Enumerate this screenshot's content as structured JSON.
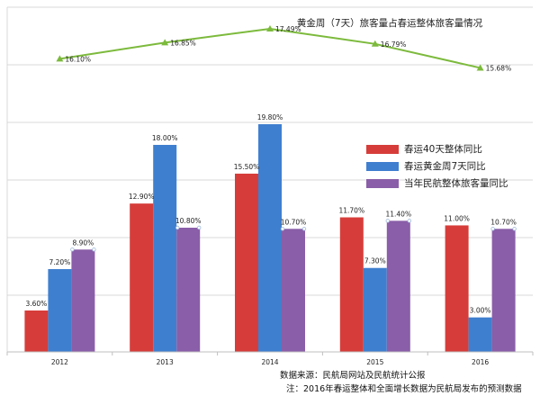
{
  "chart_data": [
    {
      "type": "bar",
      "categories": [
        "2012",
        "2013",
        "2014",
        "2015",
        "2016"
      ],
      "series": [
        {
          "name": "春运40天整体同比",
          "values": [
            3.6,
            12.9,
            15.5,
            11.7,
            11.0
          ],
          "labels": [
            "3.60%",
            "12.90%",
            "15.50%",
            "11.70%",
            "11.00%"
          ],
          "color": "#d63d3a"
        },
        {
          "name": "春运黄金周7天同比",
          "values": [
            7.2,
            18.0,
            19.8,
            7.3,
            3.0
          ],
          "labels": [
            "7.20%",
            "18.00%",
            "19.80%",
            "7.30%",
            "3.00%"
          ],
          "color": "#3f7fcf"
        },
        {
          "name": "当年民航整体旅客量同比",
          "values": [
            8.9,
            10.8,
            10.7,
            11.4,
            10.7
          ],
          "labels": [
            "8.90%",
            "10.80%",
            "10.70%",
            "11.40%",
            "10.70%"
          ],
          "color": "#8a5ea8"
        }
      ],
      "ylim": [
        0,
        21
      ]
    },
    {
      "type": "line",
      "title": "黄金周（7天）旅客量占春运整体旅客量情况",
      "categories": [
        "2012",
        "2013",
        "2014",
        "2015",
        "2016"
      ],
      "values": [
        16.1,
        16.85,
        17.49,
        16.79,
        15.68
      ],
      "labels": [
        "16.10%",
        "16.85%",
        "17.49%",
        "16.79%",
        "15.68%"
      ],
      "color": "#7cba3c"
    }
  ],
  "footer": {
    "source": "数据来源：民航局网站及民航统计公报",
    "note": "注：2016年春运整体和全面增长数据为民航局发布的预测数据"
  }
}
